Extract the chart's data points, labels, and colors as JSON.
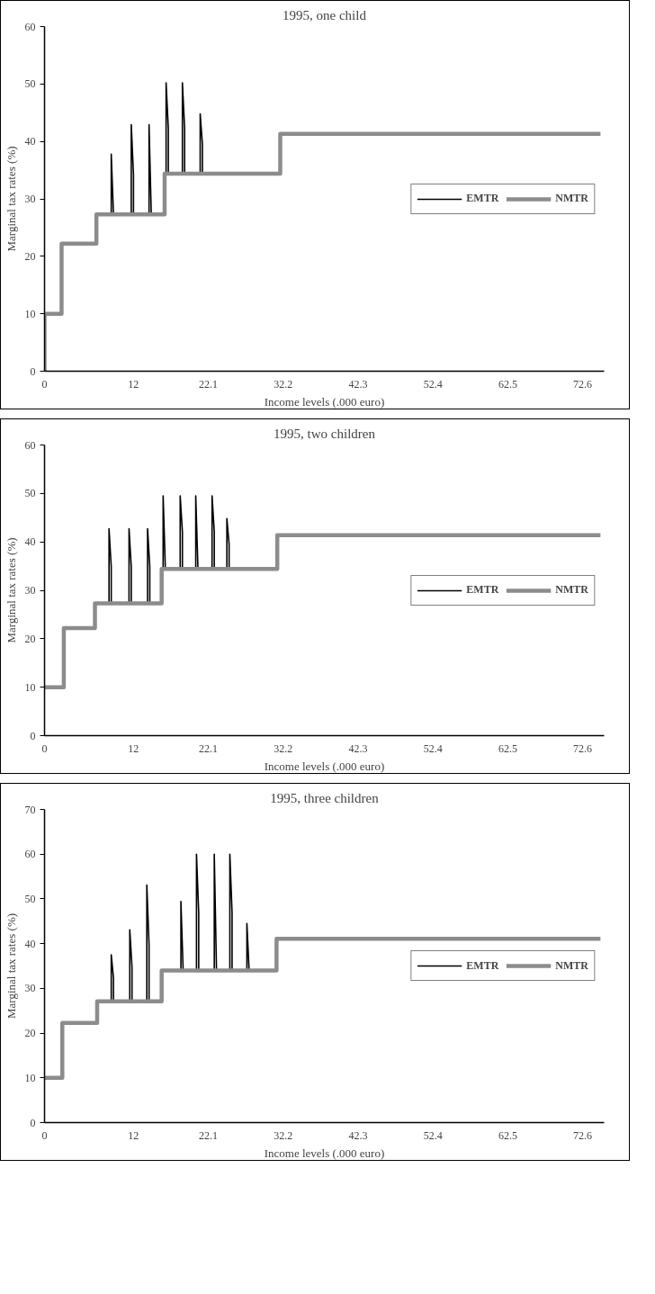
{
  "chart_data": [
    {
      "type": "line",
      "title": "1995, one child",
      "xlabel": "Income levels (.000 euro)",
      "ylabel": "Marginal tax rates (%)",
      "xlim": [
        0,
        75.5
      ],
      "xticks": [
        0,
        12,
        22.1,
        32.2,
        42.3,
        52.4,
        62.5,
        72.6
      ],
      "ylim": [
        0,
        60
      ],
      "yticks": [
        0,
        10,
        20,
        30,
        40,
        50,
        60
      ],
      "legend": "right",
      "grid": false,
      "marker": "none",
      "series": [
        {
          "name": "EMTR",
          "color": "#000000",
          "x": [
            9.0,
            9.0,
            9.3,
            null,
            11.7,
            11.7,
            12.0,
            12.0,
            null,
            14.1,
            14.1,
            14.4,
            null,
            16.4,
            16.4,
            16.7,
            16.7,
            null,
            18.6,
            18.6,
            18.9,
            18.9,
            null,
            21.0,
            21.0,
            21.3,
            21.3
          ],
          "values": [
            27.3,
            37.8,
            27.3,
            null,
            27.3,
            42.9,
            34.2,
            27.3,
            null,
            27.3,
            42.9,
            27.3,
            null,
            34.4,
            50.2,
            42.2,
            34.4,
            null,
            34.4,
            50.2,
            42.2,
            34.4,
            null,
            34.4,
            44.8,
            39.5,
            34.4
          ]
        },
        {
          "name": "NMTR",
          "type": "step",
          "color": "#8c8c8c",
          "x": [
            0,
            0,
            2.3,
            7.0,
            16.2,
            31.8,
            75.0
          ],
          "values": [
            0,
            10,
            22.2,
            27.3,
            34.4,
            41.3,
            41.3
          ]
        }
      ]
    },
    {
      "type": "line",
      "title": "1995, two children",
      "xlabel": "Income levels (.000 euro)",
      "ylabel": "Marginal tax rates (%)",
      "xlim": [
        0,
        75.5
      ],
      "xticks": [
        0,
        12,
        22.1,
        32.2,
        42.3,
        52.4,
        62.5,
        72.6
      ],
      "ylim": [
        0,
        60
      ],
      "yticks": [
        0,
        10,
        20,
        30,
        40,
        50,
        60
      ],
      "legend": "right",
      "grid": false,
      "marker": "none",
      "series": [
        {
          "name": "EMTR",
          "color": "#000000",
          "x": [
            8.7,
            8.7,
            9.0,
            9.0,
            null,
            11.4,
            11.4,
            11.7,
            11.7,
            null,
            13.9,
            13.9,
            14.2,
            14.2,
            null,
            16.0,
            16.0,
            16.3,
            null,
            18.3,
            18.3,
            18.6,
            18.6,
            null,
            20.4,
            20.4,
            20.7,
            null,
            22.6,
            22.6,
            22.9,
            22.9,
            null,
            24.6,
            24.6,
            24.9,
            24.9
          ],
          "values": [
            27.3,
            42.7,
            34.8,
            27.3,
            null,
            27.3,
            42.7,
            34.8,
            27.3,
            null,
            27.3,
            42.7,
            34.8,
            27.3,
            null,
            34.4,
            49.5,
            34.4,
            null,
            34.4,
            49.5,
            42.0,
            34.4,
            null,
            34.4,
            49.5,
            34.4,
            null,
            34.4,
            49.5,
            42.0,
            34.4,
            null,
            34.4,
            44.8,
            39.5,
            34.4
          ]
        },
        {
          "name": "NMTR",
          "type": "step",
          "color": "#8c8c8c",
          "x": [
            0,
            2.6,
            6.8,
            15.8,
            31.4,
            75.0
          ],
          "values": [
            10,
            22.2,
            27.3,
            34.4,
            41.4,
            41.4
          ]
        }
      ]
    },
    {
      "type": "line",
      "title": "1995, three children",
      "xlabel": "Income levels (.000 euro)",
      "ylabel": "Marginal tax rates (%)",
      "xlim": [
        0,
        75.5
      ],
      "xticks": [
        0,
        12,
        22.1,
        32.2,
        42.3,
        52.4,
        62.5,
        72.6
      ],
      "ylim": [
        0,
        70
      ],
      "yticks": [
        0,
        10,
        20,
        30,
        40,
        50,
        60,
        70
      ],
      "legend": "right",
      "grid": false,
      "marker": "none",
      "series": [
        {
          "name": "EMTR",
          "color": "#000000",
          "x": [
            9.0,
            9.0,
            9.3,
            9.3,
            null,
            11.5,
            11.5,
            11.8,
            11.8,
            null,
            13.8,
            13.8,
            14.1,
            14.1,
            null,
            18.4,
            18.4,
            18.7,
            null,
            20.5,
            20.5,
            20.8,
            20.8,
            null,
            22.9,
            22.9,
            23.2,
            null,
            25.0,
            25.0,
            25.3,
            25.3,
            null,
            27.3,
            27.3,
            27.6
          ],
          "values": [
            27.1,
            37.5,
            32.3,
            27.1,
            null,
            27.1,
            43.1,
            34.8,
            27.1,
            null,
            27.1,
            53.1,
            39.8,
            27.1,
            null,
            34.0,
            49.4,
            34.0,
            null,
            34.0,
            60,
            46.9,
            34.0,
            null,
            34.0,
            60,
            34.0,
            null,
            34.0,
            60,
            46.9,
            34.0,
            null,
            34.0,
            44.5,
            34.0
          ]
        },
        {
          "name": "NMTR",
          "type": "step",
          "color": "#8c8c8c",
          "x": [
            0,
            2.4,
            7.1,
            15.8,
            31.3,
            75.0
          ],
          "values": [
            10,
            22.3,
            27.1,
            34.0,
            41.1,
            41.1
          ]
        }
      ]
    }
  ]
}
